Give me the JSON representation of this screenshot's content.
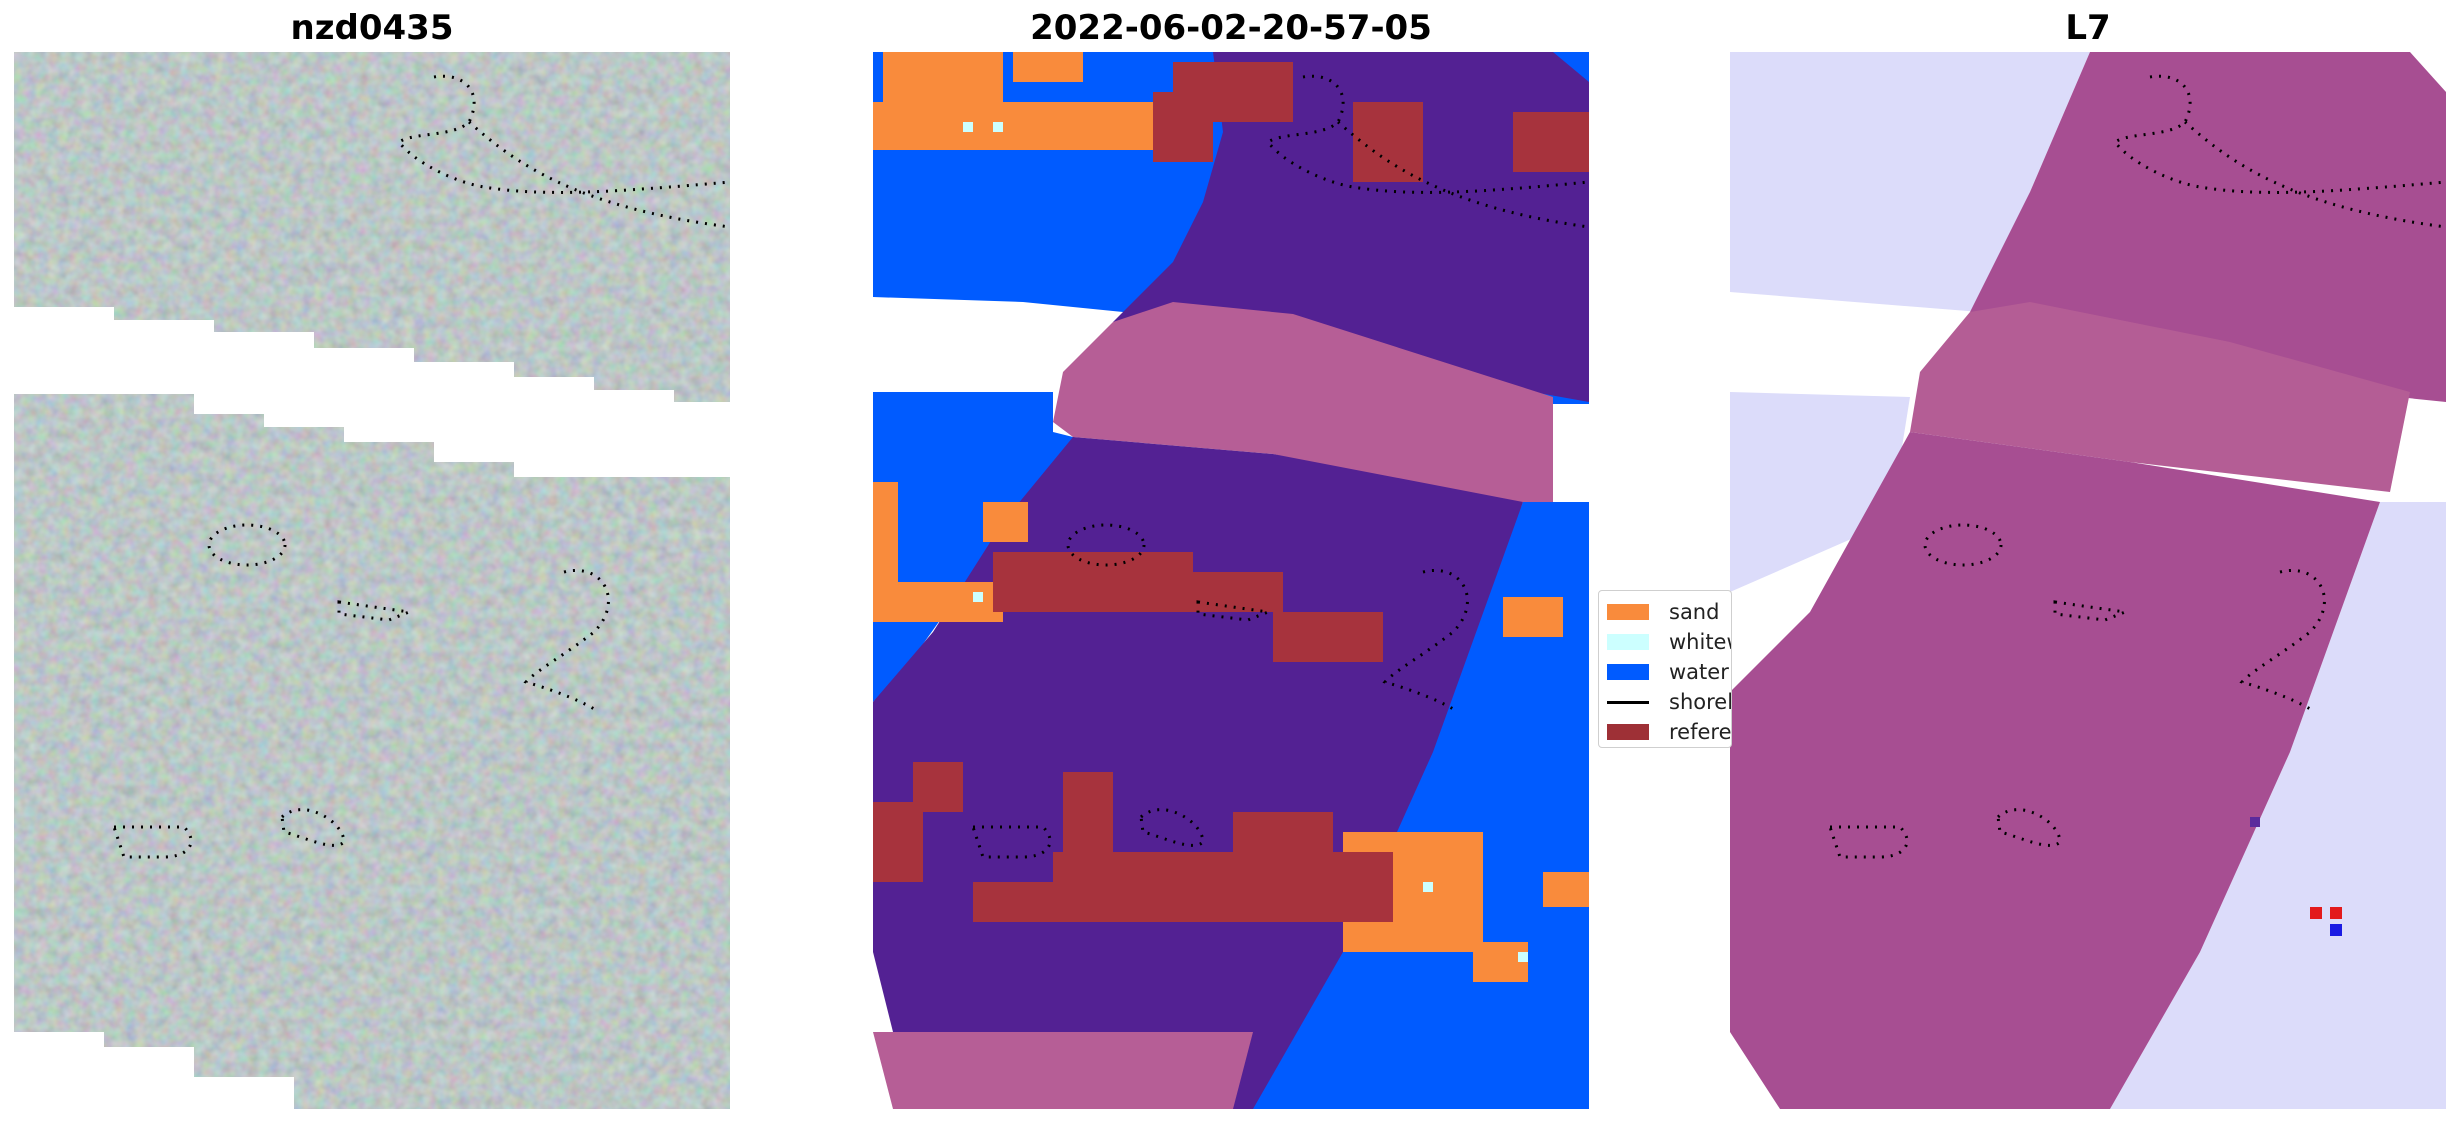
{
  "panels": [
    {
      "title": "nzd0435"
    },
    {
      "title": "2022-06-02-20-57-05"
    },
    {
      "title": "L7"
    }
  ],
  "legend": {
    "items": [
      {
        "label": "sand",
        "color": "#f98b3c",
        "kind": "patch"
      },
      {
        "label": "whitew",
        "color": "#ccffff",
        "kind": "patch"
      },
      {
        "label": "water",
        "color": "#005bff",
        "kind": "patch"
      },
      {
        "label": "shorel",
        "color": "#000000",
        "kind": "line"
      },
      {
        "label": "referen",
        "color": "#9e3036",
        "kind": "patch"
      }
    ]
  },
  "colors": {
    "sand": "#f98b3c",
    "whitewater": "#ccffff",
    "water": "#005bff",
    "reference": "#a7333d",
    "land_dark": "#532193",
    "land_pink": "#b65e96",
    "prob_magenta": "#a74e92",
    "prob_pink": "#b45d95",
    "prob_lavender": "#dcdcfa",
    "shoreline": "#000000"
  }
}
